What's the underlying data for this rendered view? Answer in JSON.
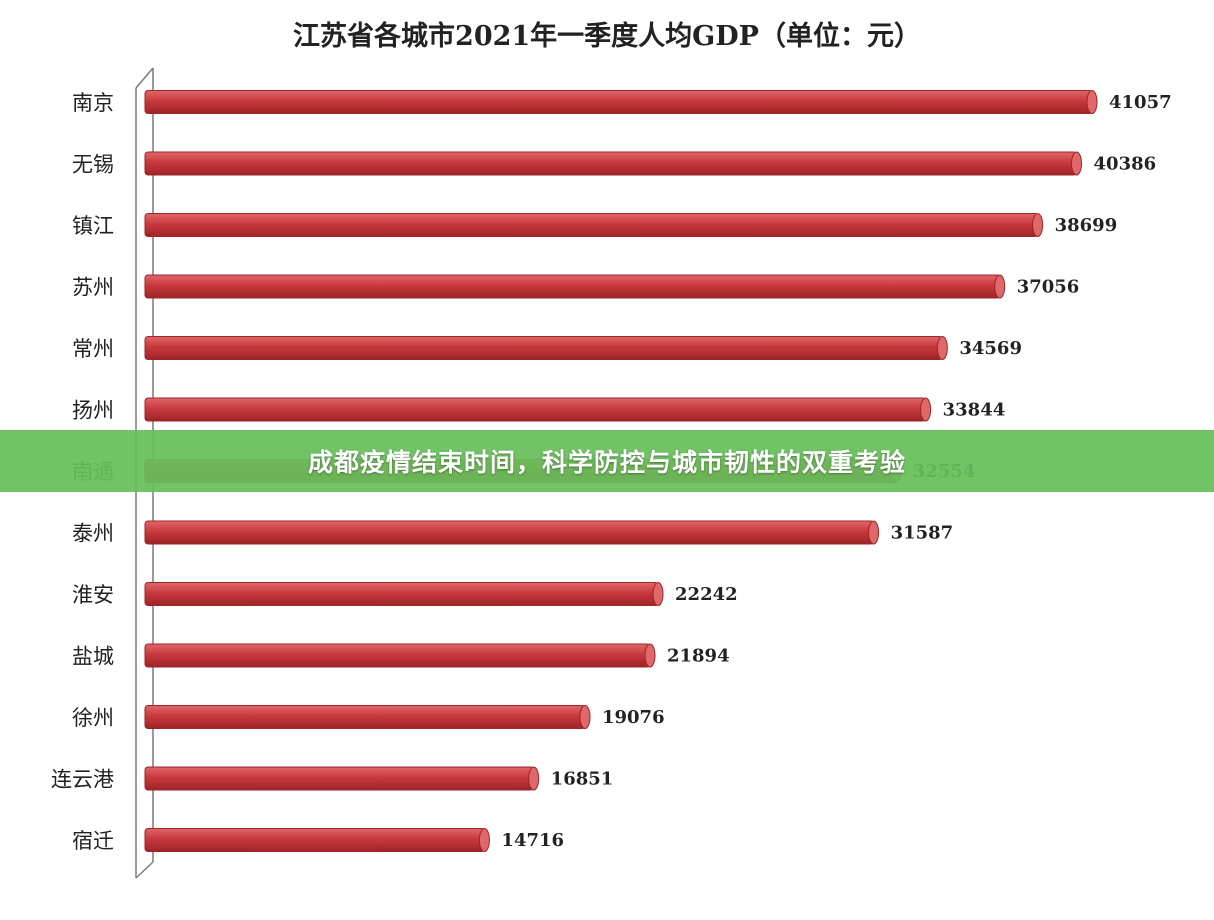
{
  "banner": {
    "text": "成都疫情结束时间，科学防控与城市韧性的双重考验"
  },
  "colors": {
    "bar": "#c8393d",
    "bar_dark": "#9e2428",
    "bar_light": "#e0686b",
    "banner": "#66be5a"
  },
  "chart_data": {
    "type": "bar",
    "orientation": "horizontal",
    "title": "江苏省各城市2021年一季度人均GDP（单位：元）",
    "categories": [
      "南京",
      "无锡",
      "镇江",
      "苏州",
      "常州",
      "扬州",
      "南通",
      "泰州",
      "淮安",
      "盐城",
      "徐州",
      "连云港",
      "宿迁"
    ],
    "values": [
      41057,
      40386,
      38699,
      37056,
      34569,
      33844,
      32554,
      31587,
      22242,
      21894,
      19076,
      16851,
      14716
    ],
    "xlim": [
      0,
      41057
    ],
    "grid": false,
    "legend": "none"
  }
}
